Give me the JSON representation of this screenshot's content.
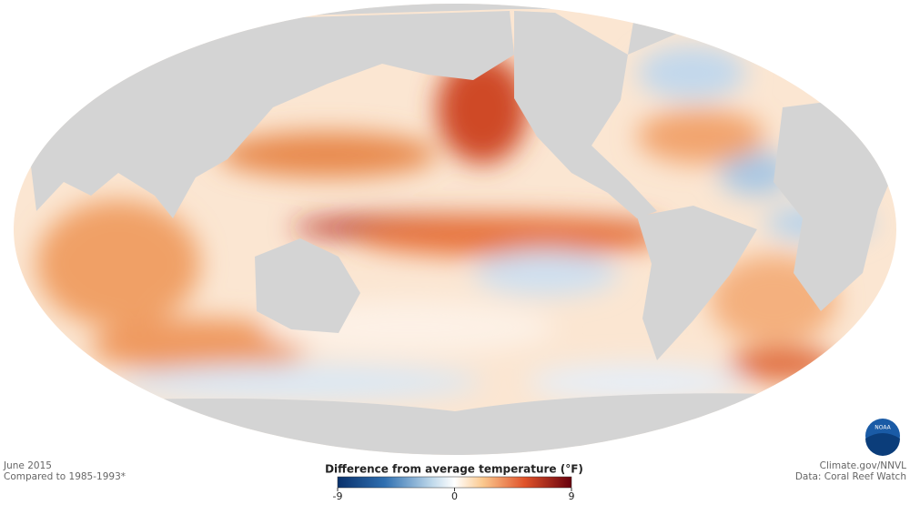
{
  "caption": {
    "date": "June 2015",
    "baseline": "Compared to 1985-1993*"
  },
  "credits": {
    "source": "Climate.gov/NNVL",
    "data": "Data: Coral Reef Watch"
  },
  "legend": {
    "title": "Difference from average temperature (°F)",
    "range": [
      -9,
      9
    ],
    "ticks": [
      -9,
      0,
      9
    ]
  },
  "logo": "NOAA"
}
